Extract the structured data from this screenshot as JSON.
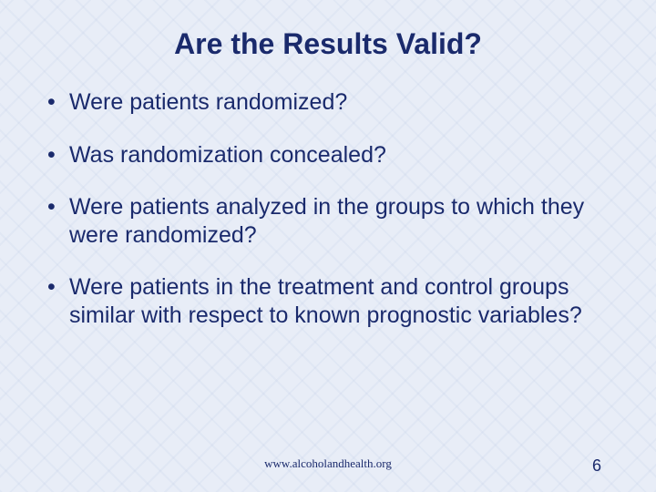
{
  "slide": {
    "title": "Are the Results Valid?",
    "bullets": [
      "Were patients randomized?",
      "Was randomization concealed?",
      "Were patients analyzed in the groups to which they were randomized?",
      "Were patients in the treatment and control groups similar with respect to known prognostic variables?"
    ],
    "footer_url": "www.alcoholandhealth.org",
    "page_number": "6"
  },
  "style": {
    "background_color": "#e8edf7",
    "text_color": "#1a2a6c",
    "title_fontsize": 32,
    "bullet_fontsize": 25,
    "footer_fontsize": 13,
    "font_family": "Verdana"
  }
}
